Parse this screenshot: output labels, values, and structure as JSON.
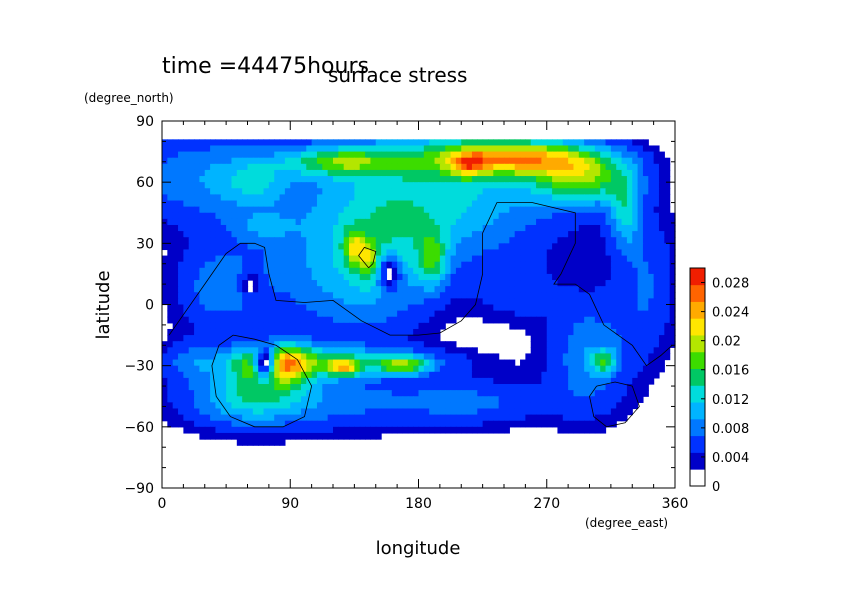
{
  "chart_data": {
    "type": "heatmap",
    "title": "surface stress",
    "subtitle": "time =44475hours",
    "xlabel": "longitude",
    "ylabel": "latitude",
    "x_unit": "(degree_east)",
    "y_unit": "(degree_north)",
    "xlim": [
      0,
      360
    ],
    "ylim": [
      -90,
      90
    ],
    "x_ticks": [
      0,
      90,
      180,
      270,
      360
    ],
    "y_ticks": [
      90,
      60,
      30,
      0,
      -30,
      -60,
      -90
    ],
    "colorbar": {
      "min": 0,
      "max": 0.03,
      "ticks": [
        "0.028",
        "0.024",
        "0.02",
        "0.016",
        "0.012",
        "0.008",
        "0.004",
        "0"
      ],
      "tick_values": [
        0.028,
        0.024,
        0.02,
        0.016,
        0.012,
        0.008,
        0.004,
        0
      ],
      "colors": [
        "#ffffff",
        "#0000c8",
        "#0032ff",
        "#0078ff",
        "#00b4ff",
        "#00dcdc",
        "#00c864",
        "#3cdc00",
        "#b4e600",
        "#ffe600",
        "#ffaa00",
        "#ff6400",
        "#f01e00"
      ]
    },
    "fields": [
      {
        "lon": 190,
        "lat": 55,
        "slon": 60,
        "slat": 25,
        "amp": 0.011
      },
      {
        "lon": 245,
        "lat": 72,
        "slon": 40,
        "slat": 6,
        "amp": 0.019
      },
      {
        "lon": 295,
        "lat": 62,
        "slon": 25,
        "slat": 9,
        "amp": 0.015
      },
      {
        "lon": 325,
        "lat": 45,
        "slon": 8,
        "slat": 12,
        "amp": 0.009
      },
      {
        "lon": 215,
        "lat": 68,
        "slon": 8,
        "slat": 4,
        "amp": 0.008
      },
      {
        "lon": 125,
        "lat": 70,
        "slon": 28,
        "slat": 5,
        "amp": 0.012
      },
      {
        "lon": 30,
        "lat": 62,
        "slon": 40,
        "slat": 16,
        "amp": 0.007
      },
      {
        "lon": 65,
        "lat": 60,
        "slon": 15,
        "slat": 8,
        "amp": 0.005
      },
      {
        "lon": 120,
        "lat": 15,
        "slon": 40,
        "slat": 25,
        "amp": 0.006
      },
      {
        "lon": 155,
        "lat": 20,
        "slon": 25,
        "slat": 20,
        "amp": 0.005
      },
      {
        "lon": 135,
        "lat": 28,
        "slon": 5,
        "slat": 6,
        "amp": 0.009
      },
      {
        "lon": 145,
        "lat": 22,
        "slon": 5,
        "slat": 6,
        "amp": 0.008
      },
      {
        "lon": 190,
        "lat": 22,
        "slon": 7,
        "slat": 10,
        "amp": 0.009
      },
      {
        "lon": 40,
        "lat": 8,
        "slon": 22,
        "slat": 15,
        "amp": 0.006
      },
      {
        "lon": 70,
        "lat": 38,
        "slon": 15,
        "slat": 5,
        "amp": 0.004
      },
      {
        "lon": 80,
        "lat": -30,
        "slon": 18,
        "slat": 8,
        "amp": 0.018
      },
      {
        "lon": 120,
        "lat": -28,
        "slon": 55,
        "slat": 5,
        "amp": 0.01
      },
      {
        "lon": 128,
        "lat": -31,
        "slon": 8,
        "slat": 3,
        "amp": 0.013
      },
      {
        "lon": 170,
        "lat": -30,
        "slon": 12,
        "slat": 3,
        "amp": 0.012
      },
      {
        "lon": 100,
        "lat": -48,
        "slon": 60,
        "slat": 10,
        "amp": 0.006
      },
      {
        "lon": 60,
        "lat": -45,
        "slon": 25,
        "slat": 10,
        "amp": 0.007
      },
      {
        "lon": 300,
        "lat": -25,
        "slon": 20,
        "slat": 20,
        "amp": 0.007
      },
      {
        "lon": 310,
        "lat": -28,
        "slon": 6,
        "slat": 4,
        "amp": 0.01
      },
      {
        "lon": 20,
        "lat": -28,
        "slon": 15,
        "slat": 8,
        "amp": 0.004
      },
      {
        "lon": 220,
        "lat": -48,
        "slon": 40,
        "slat": 8,
        "amp": 0.005
      },
      {
        "lon": 340,
        "lat": 10,
        "slon": 15,
        "slat": 25,
        "amp": 0.005
      },
      {
        "lon": 250,
        "lat": 5,
        "slon": 20,
        "slat": 10,
        "amp": 0.003
      }
    ],
    "holes": [
      {
        "lon": 72,
        "lat": -28,
        "slon": 6,
        "slat": 7
      },
      {
        "lon": 62,
        "lat": 10,
        "slon": 5,
        "slat": 5
      },
      {
        "lon": 160,
        "lat": 15,
        "slon": 6,
        "slat": 7
      }
    ],
    "contours": [
      [
        [
          50,
          -15
        ],
        [
          40,
          -20
        ],
        [
          35,
          -30
        ],
        [
          38,
          -45
        ],
        [
          48,
          -55
        ],
        [
          65,
          -60
        ],
        [
          85,
          -60
        ],
        [
          100,
          -55
        ],
        [
          105,
          -40
        ],
        [
          95,
          -27
        ],
        [
          80,
          -20
        ],
        [
          65,
          -17
        ],
        [
          50,
          -15
        ]
      ],
      [
        [
          145,
          18
        ],
        [
          138,
          24
        ],
        [
          142,
          28
        ],
        [
          150,
          26
        ],
        [
          148,
          20
        ],
        [
          145,
          18
        ]
      ],
      [
        [
          5,
          -15
        ],
        [
          15,
          -5
        ],
        [
          30,
          10
        ],
        [
          45,
          25
        ],
        [
          55,
          30
        ],
        [
          65,
          30
        ],
        [
          72,
          28
        ],
        [
          75,
          15
        ],
        [
          80,
          2
        ],
        [
          100,
          1
        ],
        [
          120,
          2
        ],
        [
          140,
          -8
        ],
        [
          160,
          -15
        ],
        [
          180,
          -15
        ],
        [
          195,
          -14
        ],
        [
          210,
          -8
        ],
        [
          220,
          0
        ],
        [
          225,
          15
        ],
        [
          225,
          35
        ],
        [
          235,
          50
        ],
        [
          260,
          50
        ],
        [
          290,
          45
        ],
        [
          290,
          30
        ],
        [
          280,
          15
        ],
        [
          275,
          10
        ],
        [
          290,
          10
        ],
        [
          300,
          5
        ],
        [
          310,
          -10
        ],
        [
          330,
          -20
        ],
        [
          340,
          -30
        ],
        [
          350,
          -25
        ],
        [
          358,
          -20
        ]
      ],
      [
        [
          305,
          -40
        ],
        [
          300,
          -45
        ],
        [
          303,
          -55
        ],
        [
          312,
          -60
        ],
        [
          325,
          -58
        ],
        [
          335,
          -50
        ],
        [
          330,
          -40
        ],
        [
          318,
          -38
        ],
        [
          305,
          -40
        ]
      ]
    ]
  }
}
